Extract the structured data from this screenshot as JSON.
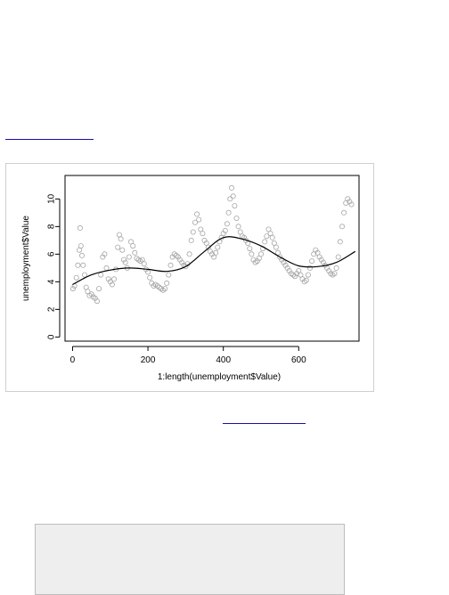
{
  "chart_data": {
    "type": "scatter",
    "xlabel": "1:length(unemployment$Value)",
    "ylabel": "unemployment$Value",
    "xlim": [
      -20,
      760
    ],
    "ylim": [
      -0.3,
      11.7
    ],
    "x_ticks": [
      0,
      200,
      400,
      600
    ],
    "y_ticks": [
      0,
      2,
      4,
      6,
      8,
      10
    ],
    "grid": false,
    "point_color": "#a6a6a6",
    "line_color": "#000000",
    "series": [
      {
        "kind": "points",
        "x": [
          1,
          5,
          10,
          14,
          18,
          20,
          22,
          25,
          28,
          32,
          36,
          40,
          45,
          50,
          55,
          60,
          65,
          70,
          75,
          80,
          85,
          90,
          95,
          100,
          105,
          110,
          115,
          120,
          124,
          128,
          132,
          136,
          140,
          145,
          150,
          155,
          160,
          165,
          170,
          175,
          180,
          185,
          190,
          195,
          200,
          205,
          210,
          215,
          220,
          225,
          230,
          235,
          240,
          245,
          250,
          255,
          260,
          265,
          270,
          275,
          280,
          285,
          290,
          295,
          300,
          305,
          310,
          315,
          320,
          325,
          330,
          335,
          340,
          345,
          350,
          355,
          360,
          365,
          370,
          375,
          380,
          385,
          390,
          395,
          400,
          405,
          410,
          414,
          418,
          422,
          426,
          430,
          435,
          440,
          445,
          450,
          455,
          460,
          465,
          470,
          475,
          480,
          485,
          490,
          495,
          500,
          505,
          510,
          515,
          520,
          525,
          530,
          535,
          540,
          545,
          550,
          555,
          560,
          565,
          570,
          575,
          580,
          585,
          590,
          595,
          600,
          605,
          610,
          615,
          620,
          625,
          630,
          635,
          640,
          645,
          650,
          655,
          660,
          665,
          670,
          675,
          680,
          685,
          690,
          695,
          700,
          705,
          710,
          715,
          720,
          725,
          730,
          735,
          740
        ],
        "y": [
          3.5,
          3.7,
          4.3,
          5.2,
          6.3,
          7.9,
          6.6,
          5.9,
          5.2,
          4.5,
          3.6,
          3.3,
          3.0,
          3.1,
          2.9,
          2.8,
          2.6,
          3.5,
          4.5,
          5.8,
          6.0,
          5.0,
          4.2,
          4.0,
          3.8,
          4.2,
          4.9,
          6.5,
          7.4,
          7.1,
          6.3,
          5.6,
          5.4,
          5.0,
          5.8,
          6.9,
          6.6,
          6.1,
          5.7,
          5.6,
          5.5,
          5.6,
          5.3,
          4.9,
          4.7,
          4.3,
          3.9,
          3.7,
          3.8,
          3.7,
          3.6,
          3.5,
          3.4,
          3.5,
          3.9,
          4.5,
          5.2,
          5.8,
          6.0,
          5.9,
          5.8,
          5.6,
          5.4,
          5.2,
          5.1,
          5.3,
          6.0,
          7.0,
          7.6,
          8.3,
          8.9,
          8.5,
          7.8,
          7.5,
          7.0,
          6.8,
          6.5,
          6.2,
          6.0,
          5.8,
          6.1,
          6.5,
          6.9,
          7.2,
          7.5,
          7.7,
          8.2,
          9.0,
          10.0,
          10.8,
          10.2,
          9.5,
          8.6,
          8.0,
          7.6,
          7.3,
          7.2,
          7.0,
          6.8,
          6.4,
          6.0,
          5.6,
          5.4,
          5.5,
          5.7,
          6.0,
          6.4,
          6.9,
          7.3,
          7.8,
          7.5,
          7.2,
          6.8,
          6.5,
          6.1,
          5.8,
          5.6,
          5.4,
          5.2,
          5.0,
          4.8,
          4.6,
          4.5,
          4.4,
          4.6,
          4.8,
          4.5,
          4.2,
          4.0,
          4.1,
          4.5,
          5.0,
          5.5,
          6.0,
          6.3,
          6.1,
          5.8,
          5.6,
          5.4,
          5.2,
          5.0,
          4.8,
          4.6,
          4.5,
          4.6,
          5.0,
          5.8,
          6.9,
          8.0,
          9.0,
          9.7,
          10.0,
          9.8,
          9.6
        ]
      },
      {
        "kind": "smooth",
        "x": [
          0,
          50,
          100,
          150,
          200,
          250,
          300,
          350,
          400,
          450,
          500,
          550,
          600,
          650,
          700,
          750
        ],
        "y": [
          3.8,
          4.5,
          4.85,
          5.0,
          4.9,
          4.75,
          5.1,
          6.2,
          7.2,
          7.1,
          6.6,
          5.8,
          5.15,
          5.1,
          5.4,
          6.2
        ]
      }
    ]
  }
}
